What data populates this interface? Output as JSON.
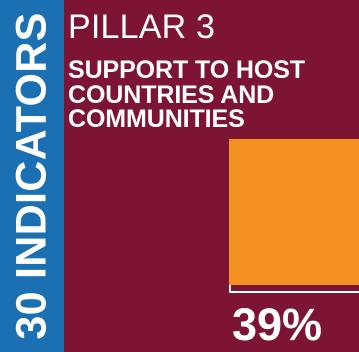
{
  "sidebar": {
    "label": "30 INDICATORS"
  },
  "pillar": {
    "title": "PILLAR 3",
    "subtitle_lines": [
      "SUPPORT TO HOST",
      "COUNTRIES AND",
      "COMMUNITIES"
    ]
  },
  "progress": {
    "value_percent": 39,
    "label": "39%"
  },
  "colors": {
    "background": "#7d1433",
    "sidebar": "#1b6fb3",
    "progress_fill": "#f39220",
    "text": "#ffffff"
  }
}
